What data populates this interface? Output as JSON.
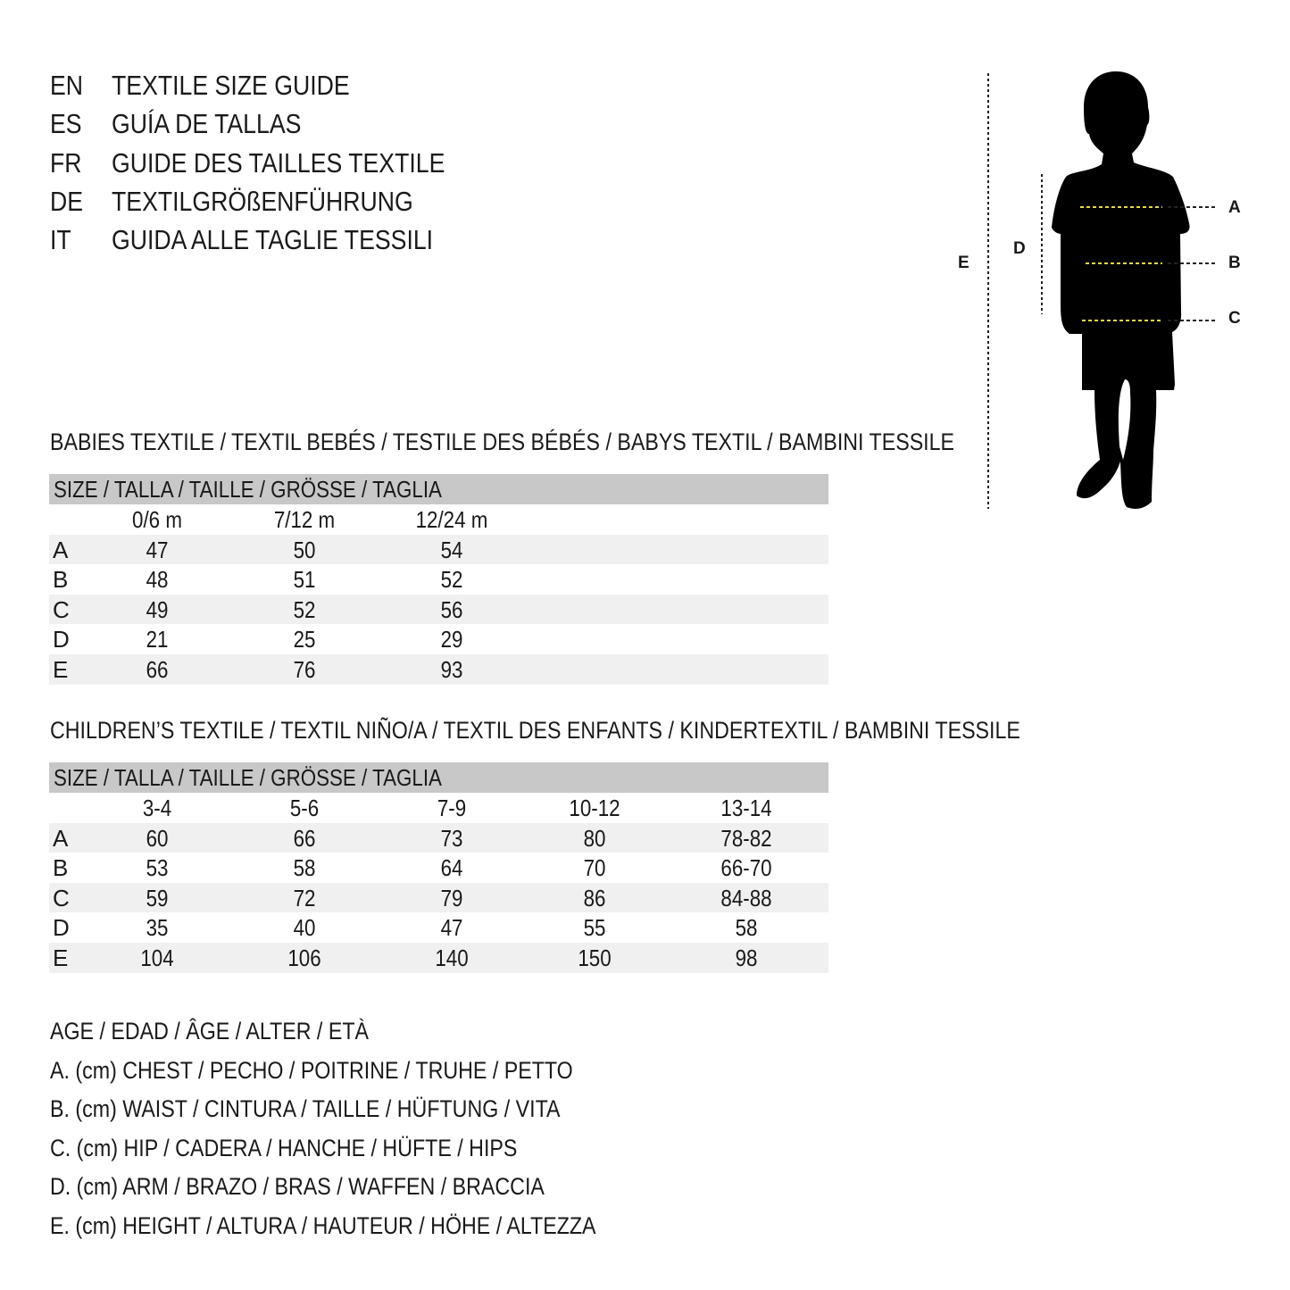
{
  "titles": [
    {
      "code": "EN",
      "text": "TEXTILE SIZE GUIDE"
    },
    {
      "code": "ES",
      "text": "GUÍA DE TALLAS"
    },
    {
      "code": "FR",
      "text": "GUIDE DES TAILLES TEXTILE"
    },
    {
      "code": "DE",
      "text": "TEXTILGRÖßENFÜHRUNG"
    },
    {
      "code": "IT",
      "text": "GUIDA ALLE TAGLIE TESSILI"
    }
  ],
  "figure": {
    "labels": {
      "A": "A",
      "B": "B",
      "C": "C",
      "D": "D",
      "E": "E"
    },
    "icon": "child-silhouette-icon",
    "guide_color": "#e8d84a"
  },
  "babies": {
    "heading": "BABIES TEXTILE / TEXTIL BEBÉS / TESTILE DES BÉBÉS / BABYS TEXTIL / BAMBINI TESSILE",
    "size_header": "SIZE / TALLA / TAILLE / GRÖSSE / TAGLIA",
    "columns": [
      "0/6 m",
      "7/12 m",
      "12/24 m"
    ],
    "rows": [
      {
        "label": "A",
        "values": [
          "47",
          "50",
          "54"
        ]
      },
      {
        "label": "B",
        "values": [
          "48",
          "51",
          "52"
        ]
      },
      {
        "label": "C",
        "values": [
          "49",
          "52",
          "56"
        ]
      },
      {
        "label": "D",
        "values": [
          "21",
          "25",
          "29"
        ]
      },
      {
        "label": "E",
        "values": [
          "66",
          "76",
          "93"
        ]
      }
    ]
  },
  "children": {
    "heading": "CHILDREN’S TEXTILE / TEXTIL NIÑO/A / TEXTIL DES ENFANTS / KINDERTEXTIL / BAMBINI TESSILE",
    "size_header": "SIZE / TALLA / TAILLE / GRÖSSE / TAGLIA",
    "columns": [
      "3-4",
      "5-6",
      "7-9",
      "10-12",
      "13-14"
    ],
    "rows": [
      {
        "label": "A",
        "values": [
          "60",
          "66",
          "73",
          "80",
          "78-82"
        ]
      },
      {
        "label": "B",
        "values": [
          "53",
          "58",
          "64",
          "70",
          "66-70"
        ]
      },
      {
        "label": "C",
        "values": [
          "59",
          "72",
          "79",
          "86",
          "84-88"
        ]
      },
      {
        "label": "D",
        "values": [
          "35",
          "40",
          "47",
          "55",
          "58"
        ]
      },
      {
        "label": "E",
        "values": [
          "104",
          "106",
          "140",
          "150",
          "98"
        ]
      }
    ]
  },
  "legend": [
    "AGE / EDAD / ÂGE / ALTER / ETÀ",
    "A. (cm) CHEST / PECHO / POITRINE / TRUHE / PETTO",
    "B. (cm) WAIST / CINTURA / TAILLE / HÜFTUNG / VITA",
    "C. (cm) HIP / CADERA / HANCHE / HÜFTE / HIPS",
    "D. (cm) ARM / BRAZO / BRAS / WAFFEN / BRACCIA",
    "E. (cm) HEIGHT / ALTURA / HAUTEUR / HÖHE / ALTEZZA"
  ]
}
